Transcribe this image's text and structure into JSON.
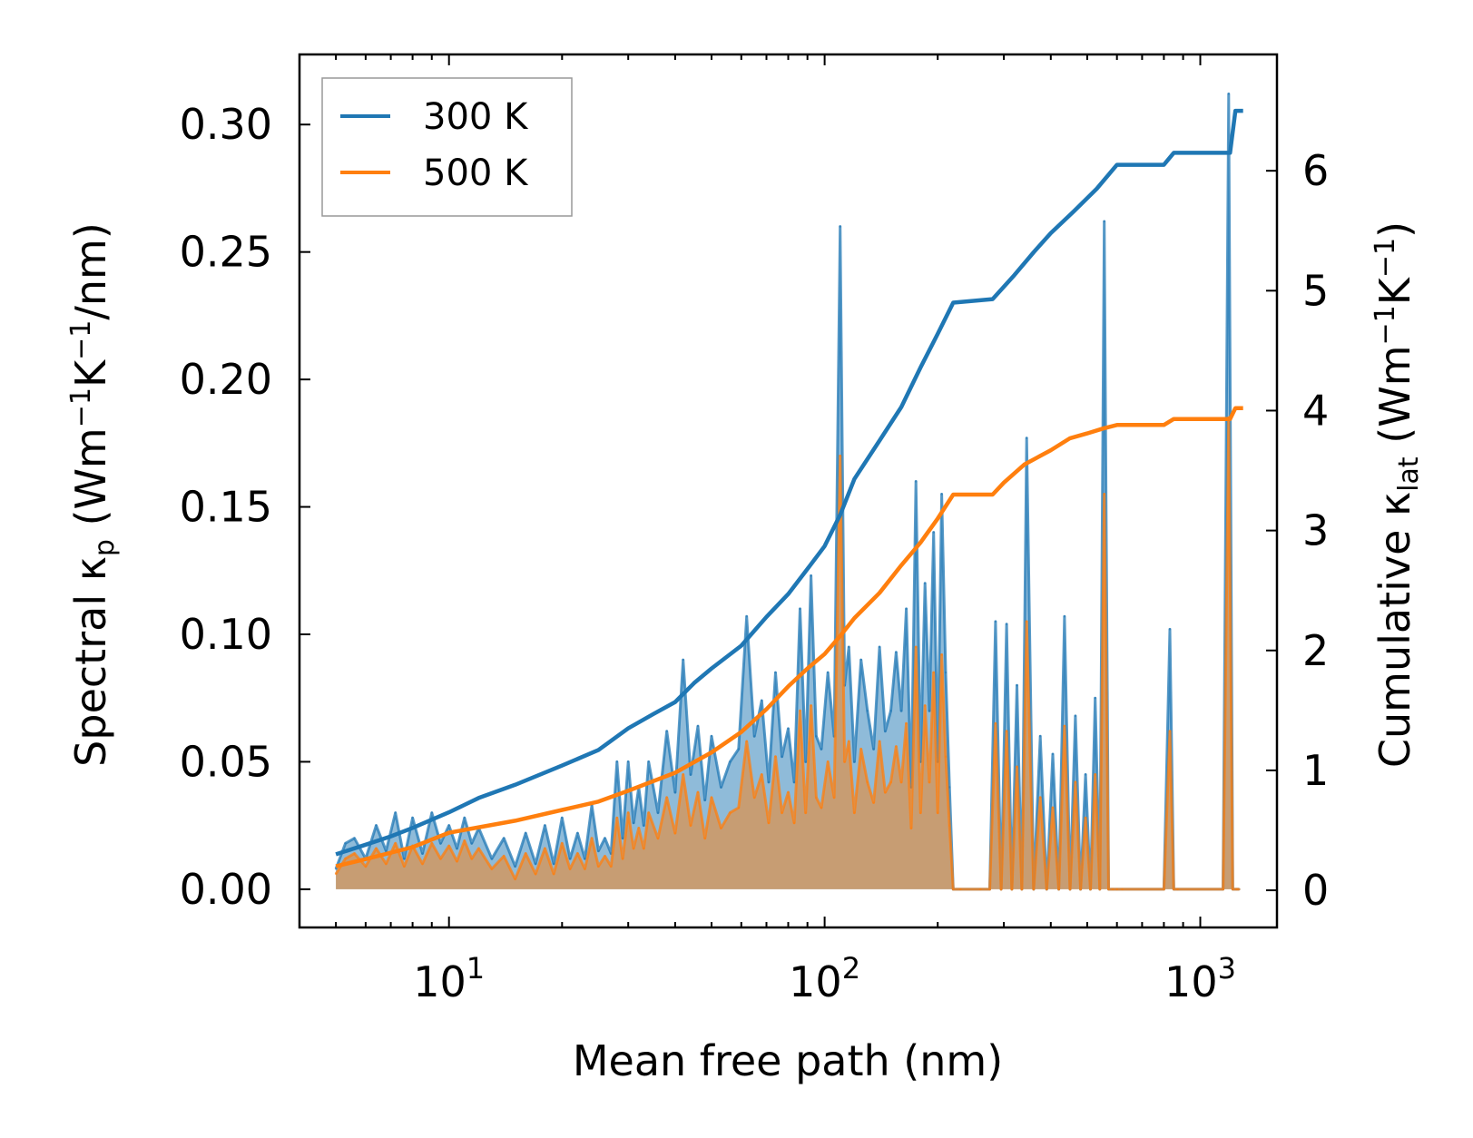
{
  "chart_data": {
    "type": "line",
    "title": "",
    "xscale": "log",
    "xlabel": "Mean free path (nm)",
    "xlim": [
      4.0,
      1600
    ],
    "xticks": [
      {
        "value": 10,
        "base": "10",
        "exp": "1"
      },
      {
        "value": 100,
        "base": "10",
        "exp": "2"
      },
      {
        "value": 1000,
        "base": "10",
        "exp": "3"
      }
    ],
    "ylabel_left": {
      "prefix": "Spectral κ",
      "sub": "p",
      "unit_open": " (Wm",
      "sup1": "−1",
      "mid": "K",
      "sup2": "−1",
      "unit_close": "/nm)"
    },
    "ylim_left": [
      -0.015,
      0.3275
    ],
    "yticks_left": [
      "0.00",
      "0.05",
      "0.10",
      "0.15",
      "0.20",
      "0.25",
      "0.30"
    ],
    "ylabel_right": {
      "prefix": "Cumulative κ",
      "sub": "lat",
      "unit_open": " (Wm",
      "sup1": "−1",
      "mid": "K",
      "sup2": "−1",
      "unit_close": ")"
    },
    "ylim_right": [
      -0.31,
      6.97
    ],
    "yticks_right": [
      "0",
      "1",
      "2",
      "3",
      "4",
      "5",
      "6"
    ],
    "legend": {
      "position": "top-left",
      "entries": [
        {
          "label": "300 K",
          "color": "#1f77b4"
        },
        {
          "label": "500 K",
          "color": "#ff7f0e"
        }
      ]
    },
    "series": [
      {
        "name": "300 K",
        "kind": "cumulative",
        "axis": "right",
        "color": "#1f77b4",
        "x": [
          5.0,
          6.0,
          7.0,
          8.0,
          10.0,
          12.0,
          15.0,
          20.0,
          25.0,
          30.0,
          35.0,
          40.0,
          45.0,
          50.0,
          60.0,
          70.0,
          80.0,
          90.0,
          100.0,
          110.0,
          120.0,
          140.0,
          160.0,
          180.0,
          200.0,
          220.0,
          280.0,
          320.0,
          360.0,
          400.0,
          460.0,
          530.0,
          600.0,
          800.0,
          850.0,
          1200.0,
          1240.0,
          1300.0
        ],
        "values": [
          0.3,
          0.38,
          0.45,
          0.52,
          0.65,
          0.77,
          0.88,
          1.04,
          1.17,
          1.35,
          1.47,
          1.57,
          1.73,
          1.85,
          2.04,
          2.28,
          2.47,
          2.68,
          2.87,
          3.13,
          3.43,
          3.75,
          4.03,
          4.36,
          4.64,
          4.9,
          4.93,
          5.13,
          5.32,
          5.48,
          5.66,
          5.85,
          6.05,
          6.05,
          6.15,
          6.15,
          6.5,
          6.5
        ]
      },
      {
        "name": "500 K",
        "kind": "cumulative",
        "axis": "right",
        "color": "#ff7f0e",
        "x": [
          5.0,
          6.0,
          8.0,
          10.0,
          15.0,
          20.0,
          25.0,
          30.0,
          40.0,
          50.0,
          60.0,
          70.0,
          80.0,
          90.0,
          100.0,
          110.0,
          120.0,
          140.0,
          160.0,
          180.0,
          200.0,
          220.0,
          280.0,
          300.0,
          340.0,
          400.0,
          450.0,
          500.0,
          550.0,
          600.0,
          800.0,
          850.0,
          1200.0,
          1240.0,
          1300.0
        ],
        "values": [
          0.2,
          0.26,
          0.36,
          0.48,
          0.58,
          0.67,
          0.74,
          0.83,
          0.98,
          1.15,
          1.32,
          1.51,
          1.7,
          1.85,
          1.97,
          2.12,
          2.27,
          2.48,
          2.71,
          2.9,
          3.1,
          3.3,
          3.3,
          3.4,
          3.55,
          3.67,
          3.77,
          3.81,
          3.85,
          3.88,
          3.88,
          3.93,
          3.93,
          4.02,
          4.02
        ]
      },
      {
        "name": "300 K spectral",
        "kind": "spectral",
        "axis": "left",
        "color": "#1f77b4",
        "x": [
          5.0,
          5.3,
          5.6,
          6.0,
          6.4,
          6.8,
          7.2,
          7.6,
          8.0,
          8.5,
          9.0,
          9.5,
          10.0,
          10.5,
          11.0,
          11.5,
          12.0,
          13.0,
          14.0,
          15.0,
          16.0,
          17.0,
          18.0,
          19.0,
          20.0,
          21.0,
          22.0,
          23.0,
          24.0,
          25.0,
          26.0,
          27.0,
          28.0,
          29.0,
          30.0,
          31.0,
          32.0,
          33.0,
          34.0,
          36.0,
          38.0,
          40.0,
          42.0,
          44.0,
          46.0,
          48.0,
          50.0,
          53.0,
          56.0,
          59.0,
          62.0,
          65.0,
          68.0,
          71.0,
          74.0,
          77.0,
          80.0,
          83.0,
          86.0,
          89.0,
          92.0,
          95.0,
          98.0,
          102.0,
          106.0,
          110.0,
          113.0,
          116.0,
          120.0,
          125.0,
          130.0,
          135.0,
          140.0,
          145.0,
          150.0,
          155.0,
          160.0,
          165.0,
          170.0,
          175.0,
          180.0,
          185.0,
          190.0,
          195.0,
          200.0,
          205.0,
          210.0,
          215.0,
          220.0,
          230.0,
          260.0,
          275.0,
          285.0,
          295.0,
          305.0,
          315.0,
          325.0,
          335.0,
          345.0,
          360.0,
          375.0,
          390.0,
          405.0,
          420.0,
          435.0,
          450.0,
          465.0,
          480.0,
          495.0,
          510.0,
          525.0,
          540.0,
          555.0,
          570.0,
          585.0,
          600.0,
          620.0,
          800.0,
          830.0,
          850.0,
          870.0,
          1150.0,
          1190.0,
          1220.0,
          1250.0,
          1270.0
        ],
        "values": [
          0.008,
          0.018,
          0.02,
          0.012,
          0.025,
          0.015,
          0.03,
          0.012,
          0.028,
          0.014,
          0.03,
          0.018,
          0.025,
          0.016,
          0.028,
          0.018,
          0.024,
          0.012,
          0.02,
          0.009,
          0.022,
          0.01,
          0.025,
          0.01,
          0.028,
          0.012,
          0.022,
          0.012,
          0.033,
          0.015,
          0.02,
          0.014,
          0.05,
          0.02,
          0.05,
          0.026,
          0.04,
          0.025,
          0.05,
          0.03,
          0.062,
          0.038,
          0.09,
          0.045,
          0.064,
          0.035,
          0.06,
          0.04,
          0.05,
          0.055,
          0.107,
          0.06,
          0.074,
          0.042,
          0.085,
          0.052,
          0.063,
          0.042,
          0.11,
          0.05,
          0.123,
          0.06,
          0.055,
          0.085,
          0.06,
          0.26,
          0.08,
          0.095,
          0.05,
          0.09,
          0.07,
          0.055,
          0.095,
          0.062,
          0.07,
          0.093,
          0.07,
          0.11,
          0.04,
          0.16,
          0.05,
          0.12,
          0.07,
          0.14,
          0.05,
          0.155,
          0.085,
          0.04,
          0.0,
          0.0,
          0.0,
          0.0,
          0.105,
          0.0,
          0.104,
          0.0,
          0.08,
          0.0,
          0.177,
          0.0,
          0.06,
          0.0,
          0.053,
          0.0,
          0.107,
          0.0,
          0.068,
          0.0,
          0.045,
          0.0,
          0.075,
          0.0,
          0.262,
          0.0,
          0.0,
          0.0,
          0.0,
          0.0,
          0.102,
          0.0,
          0.0,
          0.0,
          0.312,
          0.0,
          0.0,
          0.0
        ]
      },
      {
        "name": "500 K spectral",
        "kind": "spectral",
        "axis": "left",
        "color": "#ff7f0e",
        "x": [
          5.0,
          5.3,
          5.6,
          6.0,
          6.4,
          6.8,
          7.2,
          7.6,
          8.0,
          8.5,
          9.0,
          9.5,
          10.0,
          10.5,
          11.0,
          11.5,
          12.0,
          13.0,
          14.0,
          15.0,
          16.0,
          17.0,
          18.0,
          19.0,
          20.0,
          21.0,
          22.0,
          23.0,
          24.0,
          25.0,
          26.0,
          27.0,
          28.0,
          29.0,
          30.0,
          31.0,
          32.0,
          33.0,
          34.0,
          36.0,
          38.0,
          40.0,
          42.0,
          44.0,
          46.0,
          48.0,
          50.0,
          53.0,
          56.0,
          59.0,
          62.0,
          65.0,
          68.0,
          71.0,
          74.0,
          77.0,
          80.0,
          83.0,
          86.0,
          89.0,
          92.0,
          95.0,
          98.0,
          102.0,
          106.0,
          110.0,
          113.0,
          116.0,
          120.0,
          125.0,
          130.0,
          135.0,
          140.0,
          145.0,
          150.0,
          155.0,
          160.0,
          165.0,
          170.0,
          175.0,
          180.0,
          185.0,
          190.0,
          195.0,
          200.0,
          205.0,
          210.0,
          215.0,
          220.0,
          230.0,
          260.0,
          275.0,
          285.0,
          295.0,
          305.0,
          315.0,
          325.0,
          335.0,
          345.0,
          360.0,
          375.0,
          390.0,
          405.0,
          420.0,
          435.0,
          450.0,
          465.0,
          480.0,
          495.0,
          510.0,
          525.0,
          540.0,
          555.0,
          570.0,
          585.0,
          600.0,
          620.0,
          800.0,
          830.0,
          850.0,
          870.0,
          1150.0,
          1190.0,
          1220.0,
          1250.0,
          1270.0
        ],
        "values": [
          0.006,
          0.012,
          0.014,
          0.009,
          0.016,
          0.01,
          0.018,
          0.009,
          0.017,
          0.01,
          0.018,
          0.012,
          0.017,
          0.011,
          0.019,
          0.012,
          0.016,
          0.008,
          0.013,
          0.004,
          0.014,
          0.006,
          0.016,
          0.006,
          0.018,
          0.008,
          0.014,
          0.008,
          0.02,
          0.009,
          0.013,
          0.009,
          0.028,
          0.012,
          0.03,
          0.016,
          0.024,
          0.016,
          0.03,
          0.02,
          0.036,
          0.022,
          0.045,
          0.025,
          0.038,
          0.02,
          0.036,
          0.024,
          0.03,
          0.032,
          0.058,
          0.036,
          0.045,
          0.026,
          0.052,
          0.03,
          0.038,
          0.026,
          0.07,
          0.03,
          0.072,
          0.036,
          0.032,
          0.05,
          0.036,
          0.17,
          0.05,
          0.058,
          0.03,
          0.055,
          0.042,
          0.034,
          0.058,
          0.038,
          0.042,
          0.056,
          0.042,
          0.065,
          0.024,
          0.095,
          0.03,
          0.072,
          0.042,
          0.085,
          0.03,
          0.092,
          0.052,
          0.025,
          0.0,
          0.0,
          0.0,
          0.0,
          0.065,
          0.0,
          0.062,
          0.0,
          0.048,
          0.0,
          0.105,
          0.0,
          0.036,
          0.0,
          0.032,
          0.0,
          0.064,
          0.0,
          0.042,
          0.0,
          0.028,
          0.0,
          0.045,
          0.0,
          0.155,
          0.0,
          0.0,
          0.0,
          0.0,
          0.0,
          0.062,
          0.0,
          0.0,
          0.0,
          0.185,
          0.0,
          0.0,
          0.0
        ]
      }
    ]
  }
}
